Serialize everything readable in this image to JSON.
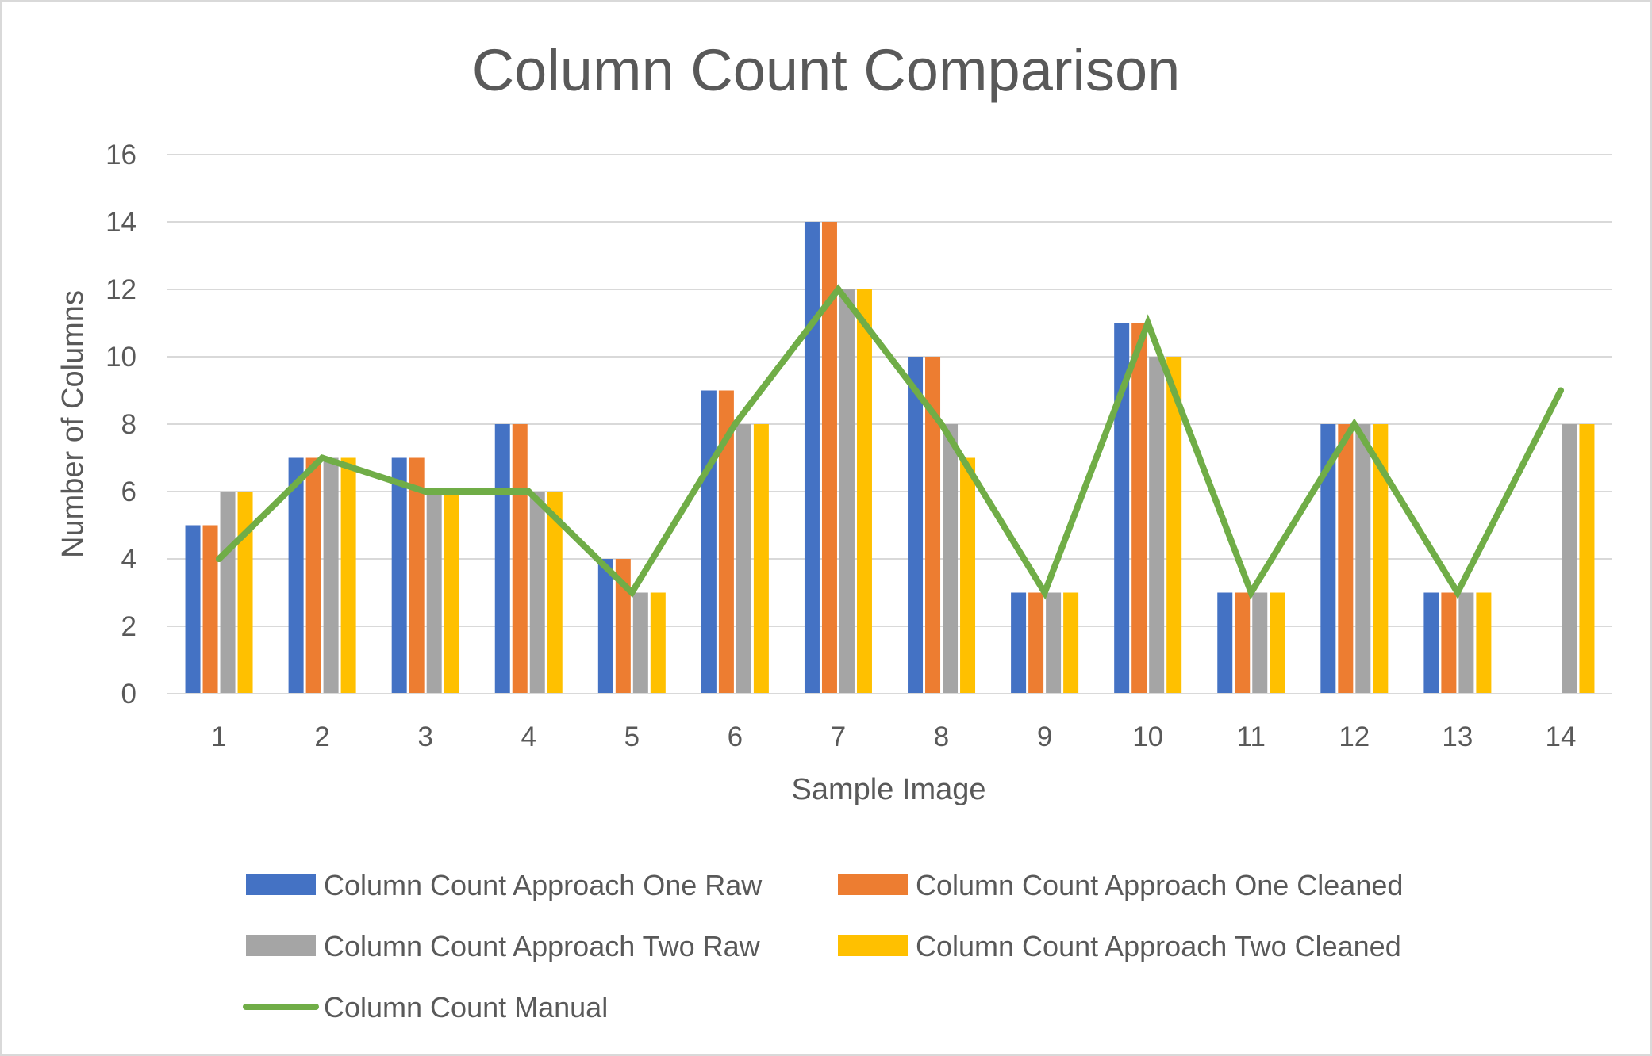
{
  "chart_data": {
    "type": "bar",
    "title": "Column Count Comparison",
    "xlabel": "Sample Image",
    "ylabel": "Number of Columns",
    "categories": [
      "1",
      "2",
      "3",
      "4",
      "5",
      "6",
      "7",
      "8",
      "9",
      "10",
      "11",
      "12",
      "13",
      "14"
    ],
    "ylim": [
      0,
      16
    ],
    "yticks": [
      "0",
      "2",
      "4",
      "6",
      "8",
      "10",
      "12",
      "14",
      "16"
    ],
    "grid": true,
    "legend_position": "bottom",
    "series": [
      {
        "name": "Column Count Approach One Raw",
        "kind": "bar",
        "color": "#4472c4",
        "values": [
          5,
          7,
          7,
          8,
          4,
          9,
          14,
          10,
          3,
          11,
          3,
          8,
          3,
          null
        ]
      },
      {
        "name": "Column Count Approach One Cleaned",
        "kind": "bar",
        "color": "#ed7d31",
        "values": [
          5,
          7,
          7,
          8,
          4,
          9,
          14,
          10,
          3,
          11,
          3,
          8,
          3,
          null
        ]
      },
      {
        "name": "Column Count Approach Two Raw",
        "kind": "bar",
        "color": "#a5a5a5",
        "values": [
          6,
          7,
          6,
          6,
          3,
          8,
          12,
          8,
          3,
          10,
          3,
          8,
          3,
          8
        ]
      },
      {
        "name": "Column Count Approach Two Cleaned",
        "kind": "bar",
        "color": "#ffc000",
        "values": [
          6,
          7,
          6,
          6,
          3,
          8,
          12,
          7,
          3,
          10,
          3,
          8,
          3,
          8
        ]
      },
      {
        "name": "Column Count Manual",
        "kind": "line",
        "color": "#70ad47",
        "values": [
          4,
          7,
          6,
          6,
          3,
          8,
          12,
          8,
          3,
          11,
          3,
          8,
          3,
          9
        ]
      }
    ]
  }
}
